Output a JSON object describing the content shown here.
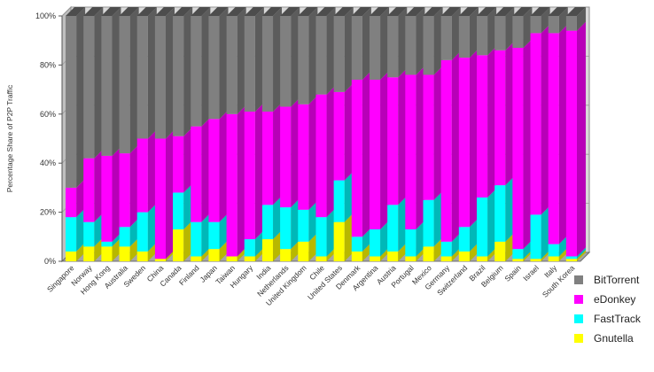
{
  "chart_data": {
    "type": "bar",
    "stacked": true,
    "ylabel": "Percentage Share of P2P Traffic",
    "ylim": [
      0,
      100
    ],
    "yticks": [
      "0%",
      "20%",
      "40%",
      "60%",
      "80%",
      "100%"
    ],
    "grid": true,
    "legend_position": "bottom-right",
    "categories": [
      "Singapore",
      "Norway",
      "Hong Kong",
      "Australia",
      "Sweden",
      "China",
      "Canada",
      "Finland",
      "Japan",
      "Taiwan",
      "Hungary",
      "India",
      "Netherlands",
      "United Kingdom",
      "Chile",
      "United States",
      "Denmark",
      "Argentina",
      "Austria",
      "Portugal",
      "Mexico",
      "Germany",
      "Switzerland",
      "Brazil",
      "Belgium",
      "Spain",
      "Israel",
      "Italy",
      "South Korea"
    ],
    "series": [
      {
        "name": "Gnutella",
        "color": "#ffff00",
        "values": [
          4,
          6,
          6,
          6,
          4,
          1,
          13,
          2,
          5,
          2,
          2,
          9,
          5,
          8,
          2,
          16,
          4,
          2,
          4,
          2,
          6,
          2,
          4,
          2,
          8,
          1,
          1,
          2,
          1
        ]
      },
      {
        "name": "FastTrack",
        "color": "#00ffff",
        "values": [
          14,
          10,
          2,
          8,
          16,
          0,
          15,
          14,
          11,
          0,
          7,
          14,
          17,
          13,
          16,
          17,
          6,
          11,
          19,
          11,
          19,
          6,
          10,
          24,
          23,
          4,
          18,
          5,
          1
        ]
      },
      {
        "name": "eDonkey",
        "color": "#ff00ff",
        "values": [
          12,
          26,
          35,
          30,
          30,
          49,
          23,
          39,
          42,
          58,
          52,
          38,
          41,
          43,
          50,
          36,
          64,
          61,
          52,
          63,
          51,
          74,
          69,
          58,
          55,
          82,
          74,
          86,
          92
        ]
      },
      {
        "name": "BitTorrent",
        "color": "#808080",
        "values": [
          70,
          58,
          57,
          56,
          50,
          50,
          49,
          45,
          42,
          40,
          39,
          39,
          37,
          36,
          32,
          31,
          26,
          26,
          25,
          24,
          24,
          18,
          17,
          16,
          14,
          13,
          7,
          7,
          6
        ]
      }
    ]
  },
  "legend": {
    "items": [
      {
        "label": "BitTorrent",
        "color": "#808080"
      },
      {
        "label": "eDonkey",
        "color": "#ff00ff"
      },
      {
        "label": "FastTrack",
        "color": "#00ffff"
      },
      {
        "label": "Gnutella",
        "color": "#ffff00"
      }
    ]
  }
}
